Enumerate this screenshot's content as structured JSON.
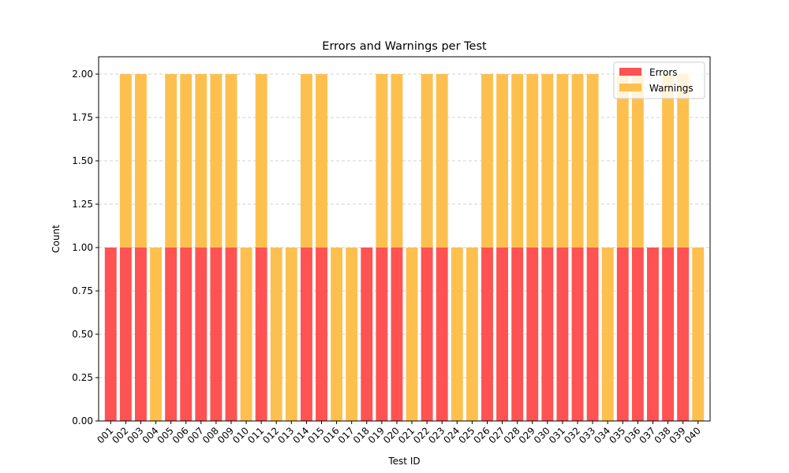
{
  "chart_data": {
    "type": "bar",
    "stacked": true,
    "title": "Errors and Warnings per Test",
    "xlabel": "Test ID",
    "ylabel": "Count",
    "ylim": [
      0,
      2.1
    ],
    "yticks": [
      0,
      0.25,
      0.5,
      0.75,
      1.0,
      1.25,
      1.5,
      1.75,
      2.0
    ],
    "ytick_labels": [
      "0.00",
      "0.25",
      "0.50",
      "0.75",
      "1.00",
      "1.25",
      "1.50",
      "1.75",
      "2.00"
    ],
    "grid": "y-dashed",
    "legend_position": "top-right",
    "categories": [
      "001",
      "002",
      "003",
      "004",
      "005",
      "006",
      "007",
      "008",
      "009",
      "010",
      "011",
      "012",
      "013",
      "014",
      "015",
      "016",
      "017",
      "018",
      "019",
      "020",
      "021",
      "022",
      "023",
      "024",
      "025",
      "026",
      "027",
      "028",
      "029",
      "030",
      "031",
      "032",
      "033",
      "034",
      "035",
      "036",
      "037",
      "038",
      "039",
      "040"
    ],
    "series": [
      {
        "name": "Errors",
        "color": "#ff5252",
        "values": [
          1,
          1,
          1,
          0,
          1,
          1,
          1,
          1,
          1,
          0,
          1,
          0,
          0,
          1,
          1,
          0,
          0,
          1,
          1,
          1,
          0,
          1,
          1,
          0,
          0,
          1,
          1,
          1,
          1,
          1,
          1,
          1,
          1,
          0,
          1,
          1,
          1,
          1,
          1,
          0
        ]
      },
      {
        "name": "Warnings",
        "color": "#fdc04e",
        "values": [
          0,
          1,
          1,
          1,
          1,
          1,
          1,
          1,
          1,
          1,
          1,
          1,
          1,
          1,
          1,
          1,
          1,
          0,
          1,
          1,
          1,
          1,
          1,
          1,
          1,
          1,
          1,
          1,
          1,
          1,
          1,
          1,
          1,
          1,
          1,
          1,
          0,
          1,
          1,
          1
        ]
      }
    ]
  }
}
